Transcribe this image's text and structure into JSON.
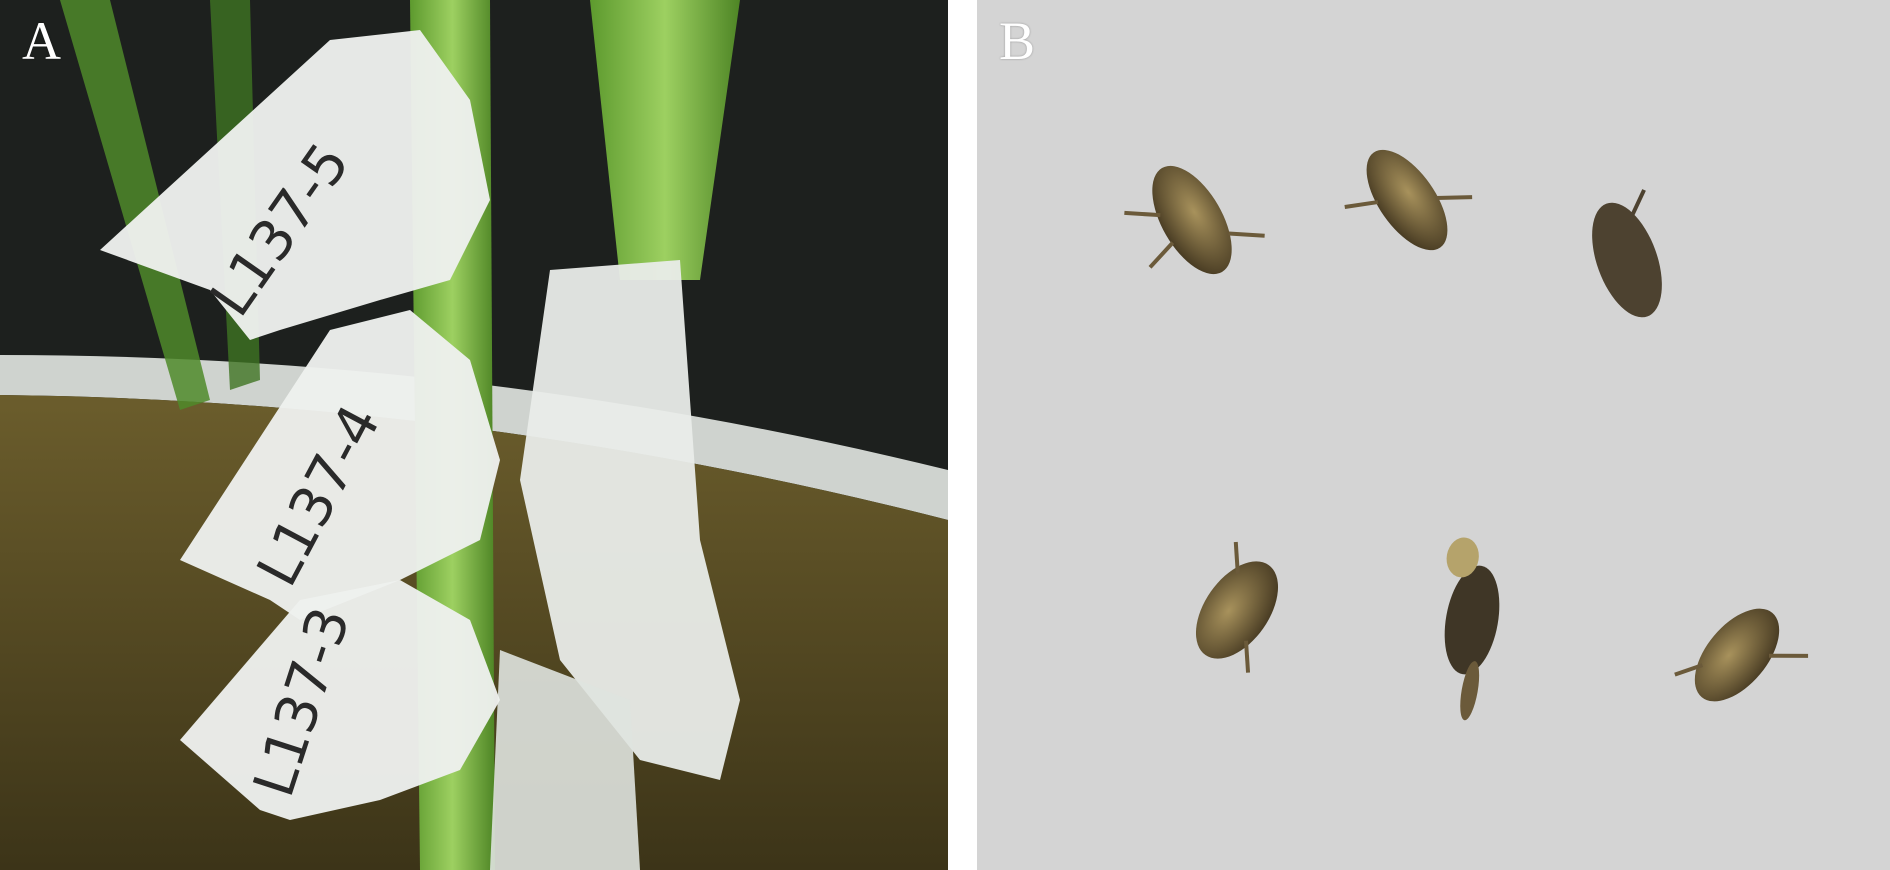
{
  "figure": {
    "panels": [
      {
        "label": "A",
        "tags": [
          "L137-5",
          "L137-4",
          "L137-3"
        ]
      },
      {
        "label": "B",
        "insect_count": 6
      }
    ]
  },
  "colors": {
    "background": "#ffffff",
    "panel_a_background": "#1c1f1d",
    "panel_b_background": "#d6d6d6",
    "stem": "#7fb845",
    "tag": "#eef0ee",
    "insect": "#6b5a3a"
  }
}
